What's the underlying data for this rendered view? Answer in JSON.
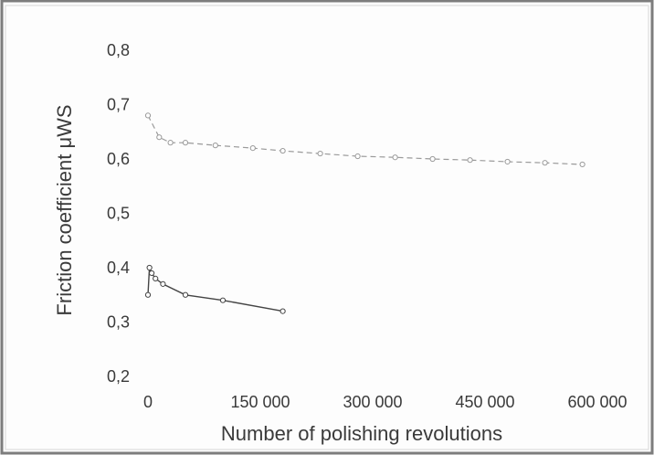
{
  "chart_data": {
    "type": "line",
    "title": "",
    "xlabel": "Number of polishing revolutions",
    "ylabel": "Friction coefficient μWS",
    "xlim": [
      0,
      600000
    ],
    "ylim": [
      0.2,
      0.8
    ],
    "x_ticks": [
      0,
      150000,
      300000,
      450000,
      600000
    ],
    "x_tick_labels": [
      "0",
      "150 000",
      "300 000",
      "450 000",
      "600 000"
    ],
    "y_ticks": [
      0.2,
      0.3,
      0.4,
      0.5,
      0.6,
      0.7,
      0.8
    ],
    "y_tick_labels": [
      "0,2",
      "0,3",
      "0,4",
      "0,5",
      "0,6",
      "0,7",
      "0,8"
    ],
    "grid": false,
    "legend": "none",
    "series": [
      {
        "color": "#9a9a9a",
        "dashed": true,
        "x": [
          0,
          15000,
          30000,
          50000,
          90000,
          140000,
          180000,
          230000,
          280000,
          330000,
          380000,
          430000,
          480000,
          530000,
          580000
        ],
        "y": [
          0.68,
          0.64,
          0.63,
          0.63,
          0.625,
          0.62,
          0.615,
          0.61,
          0.605,
          0.603,
          0.6,
          0.598,
          0.595,
          0.593,
          0.59
        ]
      },
      {
        "color": "#444444",
        "dashed": false,
        "x": [
          0,
          2000,
          5000,
          10000,
          20000,
          50000,
          100000,
          180000
        ],
        "y": [
          0.35,
          0.4,
          0.39,
          0.38,
          0.37,
          0.35,
          0.34,
          0.32
        ]
      }
    ]
  }
}
